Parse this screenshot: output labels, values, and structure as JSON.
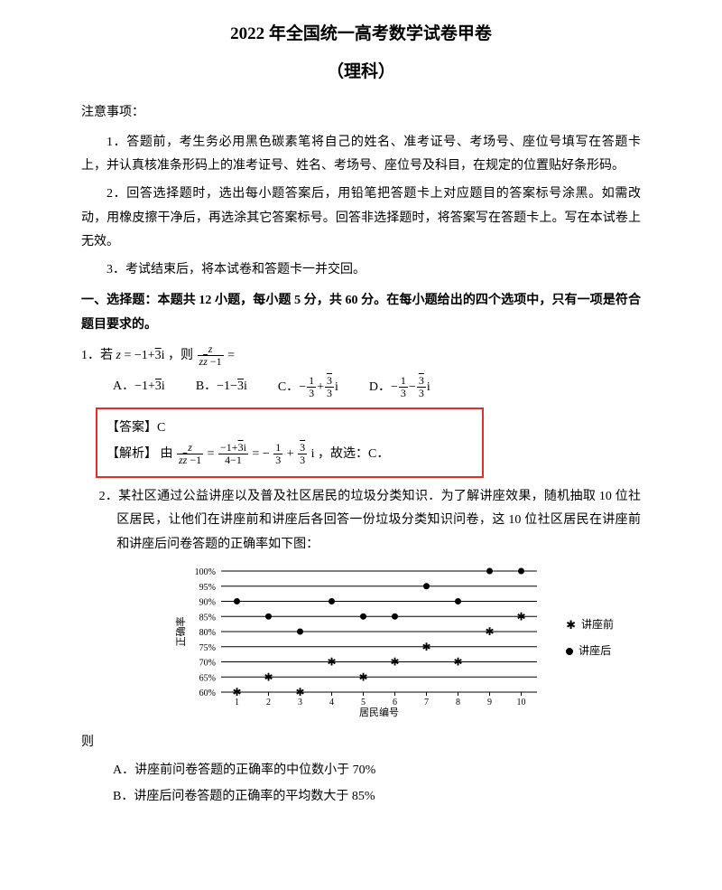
{
  "title": {
    "line1": "2022 年全国统一高考数学试卷甲卷",
    "line2": "（理科）"
  },
  "notice": {
    "head": "注意事项：",
    "p1": "1．答题前，考生务必用黑色碳素笔将自己的姓名、准考证号、考场号、座位号填写在答题卡上，并认真核准条形码上的准考证号、姓名、考场号、座位号及科目，在规定的位置贴好条形码。",
    "p2": "2．回答选择题时，选出每小题答案后，用铅笔把答题卡上对应题目的答案标号涂黑。如需改动，用橡皮擦干净后，再选涂其它答案标号。回答非选择题时，将答案写在答题卡上。写在本试卷上无效。",
    "p3": "3．考试结束后，将本试卷和答题卡一并交回。"
  },
  "section1": "一、选择题：本题共 12 小题，每小题 5 分，共 60 分。在每小题给出的四个选项中，只有一项是符合题目要求的。",
  "q1": {
    "stem_prefix": "1．若 ",
    "z_eq": "z = −1 + √3 i",
    "stem_mid": "，则 ",
    "stem_suffix": " =",
    "optA_label": "A．",
    "optA": "−1 + √3 i",
    "optB_label": "B．",
    "optB": "−1 − √3 i",
    "optC_label": "C．",
    "optD_label": "D．",
    "answer_label": "【答案】",
    "answer_val": "C",
    "explain_label": "【解析】",
    "explain_tail": "，故选：C．"
  },
  "q2": {
    "stem": "2．某社区通过公益讲座以及普及社区居民的垃圾分类知识．为了解讲座效果，随机抽取 10 位社区居民，让他们在讲座前和讲座后各回答一份垃圾分类知识问卷，这 10 位社区居民在讲座前和讲座后问卷答题的正确率如下图：",
    "chart": {
      "x_label": "居民编号",
      "y_label": "正确率",
      "x_ticks": [
        "1",
        "2",
        "3",
        "4",
        "5",
        "6",
        "7",
        "8",
        "9",
        "10"
      ],
      "y_ticks": [
        "60%",
        "65%",
        "70%",
        "75%",
        "80%",
        "85%",
        "90%",
        "95%",
        "100%"
      ],
      "y_values": [
        60,
        65,
        70,
        75,
        80,
        85,
        90,
        95,
        100
      ],
      "before": [
        60,
        65,
        60,
        70,
        65,
        70,
        75,
        70,
        80,
        85
      ],
      "after": [
        90,
        85,
        80,
        90,
        85,
        85,
        95,
        90,
        100,
        100
      ],
      "legend_before": "讲座前",
      "legend_after": "讲座后",
      "colors": {
        "axis": "#000000",
        "grid": "#000000",
        "marker": "#000000"
      }
    },
    "then": "则",
    "optA": "A．讲座前问卷答题的正确率的中位数小于 70%",
    "optB": "B．讲座后问卷答题的正确率的平均数大于 85%"
  }
}
